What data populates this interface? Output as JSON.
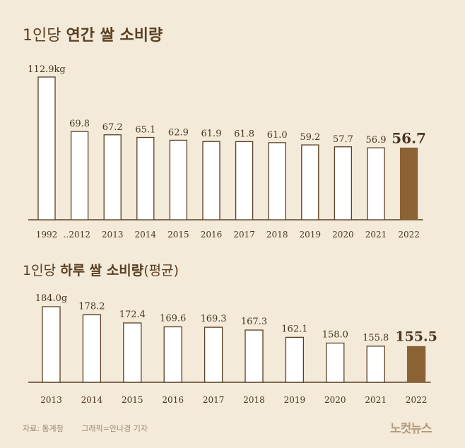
{
  "charts": {
    "annual": {
      "title_light": "1인당",
      "title_bold": "연간 쌀 소비량"
    },
    "daily": {
      "title_light": "1인당",
      "title_bold": "하루 쌀 소비량",
      "title_suffix": "(평균)"
    }
  },
  "footer": {
    "source": "자료: 통계청",
    "graphic": "그래픽=안나경 기자"
  },
  "logo": "노컷뉴스",
  "colors": {
    "background": "#f3ead9",
    "bar_fill": "#ffffff",
    "bar_stroke": "#5b3f22",
    "highlight_fill": "#8b6234",
    "text": "#4a3520"
  },
  "chart_data": [
    {
      "type": "bar",
      "title": "1인당 연간 쌀 소비량",
      "categories": [
        "1992",
        "2012",
        "2013",
        "2014",
        "2015",
        "2016",
        "2017",
        "2018",
        "2019",
        "2020",
        "2021",
        "2022"
      ],
      "values": [
        112.9,
        69.8,
        67.2,
        65.1,
        62.9,
        61.9,
        61.8,
        61.0,
        59.2,
        57.7,
        56.9,
        56.7
      ],
      "labels": [
        "112.9kg",
        "69.8",
        "67.2",
        "65.1",
        "62.9",
        "61.9",
        "61.8",
        "61.0",
        "59.2",
        "57.7",
        "56.9",
        "56.7"
      ],
      "axis_break_label": "…",
      "unit": "kg",
      "highlight": "2022",
      "ylim": [
        0,
        112.9
      ]
    },
    {
      "type": "bar",
      "title": "1인당 하루 쌀 소비량(평균)",
      "categories": [
        "2013",
        "2014",
        "2015",
        "2016",
        "2017",
        "2018",
        "2019",
        "2020",
        "2021",
        "2022"
      ],
      "values": [
        184.0,
        178.2,
        172.4,
        169.6,
        169.3,
        167.3,
        162.1,
        158.0,
        155.8,
        155.5
      ],
      "labels": [
        "184.0g",
        "178.2",
        "172.4",
        "169.6",
        "169.3",
        "167.3",
        "162.1",
        "158.0",
        "155.8",
        "155.5"
      ],
      "unit": "g",
      "highlight": "2022",
      "ylim": [
        130,
        184.0
      ]
    }
  ]
}
